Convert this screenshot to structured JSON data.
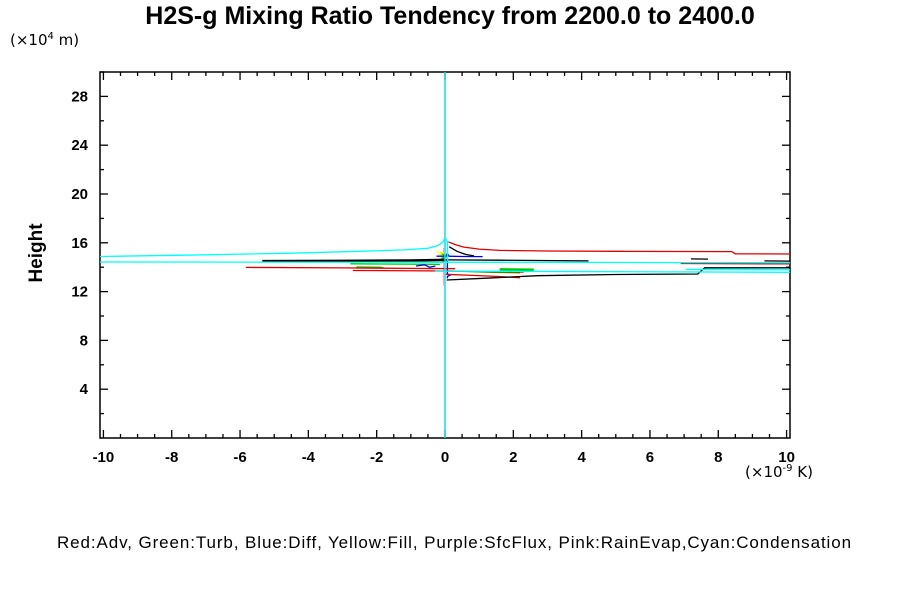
{
  "page": {
    "background": "#FFFFFF"
  },
  "chart_data": {
    "type": "line",
    "title": "H2S-g Mixing Ratio Tendency from 2200.0 to 2400.0",
    "x_axis": {
      "unit_pre": "(×10",
      "unit_sup": "-9",
      "unit_post": " K)",
      "lim": [
        -10.1,
        10.1
      ],
      "major_ticks": [
        -10,
        -8,
        -6,
        -4,
        -2,
        0,
        2,
        4,
        6,
        8,
        10
      ],
      "minor_step": 0.5
    },
    "y_axis": {
      "label": "Height",
      "unit_pre": "(×10",
      "unit_sup": "4",
      "unit_post": " m)",
      "lim": [
        0,
        30
      ],
      "major_ticks": [
        4,
        8,
        12,
        16,
        20,
        24,
        28
      ],
      "minor_step": 2
    },
    "legend_text": "Red:Adv, Green:Turb, Blue:Diff, Yellow:Fill, Purple:SfcFlux, Pink:RainEvap,Cyan:Condensation",
    "grid": false,
    "series": [
      {
        "key": "sfcflux",
        "label": "SfcFlux",
        "color_name": "Purple",
        "color": "#9400D3",
        "segments": [
          {
            "pts": [
              [
                0,
                0
              ],
              [
                0,
                30
              ]
            ]
          }
        ]
      },
      {
        "key": "rainevap",
        "label": "RainEvap",
        "color_name": "Pink",
        "color": "#FF9EC0",
        "segments": [
          {
            "pts": [
              [
                -0.04,
                12.5
              ],
              [
                -0.04,
                15.6
              ]
            ]
          }
        ]
      },
      {
        "key": "fill",
        "label": "Fill",
        "color_name": "Yellow",
        "color": "#FFFF00",
        "segments": [
          {
            "pts": [
              [
                -0.25,
                15.28
              ],
              [
                -0.05,
                15.18
              ],
              [
                -0.18,
                15.05
              ],
              [
                0.05,
                14.97
              ],
              [
                -0.06,
                14.88
              ]
            ]
          }
        ]
      },
      {
        "key": "turb",
        "label": "Turb",
        "color_name": "Green",
        "color": "#00C800",
        "segments": [
          {
            "pts": [
              [
                -2.77,
                14.28
              ],
              [
                -0.15,
                14.24
              ]
            ]
          },
          {
            "pts": [
              [
                -2.6,
                14.02
              ],
              [
                -1.8,
                13.99
              ]
            ]
          },
          {
            "pts": [
              [
                1.6,
                13.82
              ],
              [
                2.6,
                13.79
              ]
            ],
            "w": 2.5
          },
          {
            "pts": [
              [
                0.1,
                13.7
              ],
              [
                0.7,
                13.64
              ],
              [
                1.4,
                13.58
              ],
              [
                2.2,
                13.54
              ]
            ]
          },
          {
            "pts": [
              [
                -0.1,
                15.1
              ],
              [
                0.06,
                14.92
              ],
              [
                -0.08,
                14.75
              ],
              [
                0.06,
                14.6
              ],
              [
                -0.06,
                14.45
              ],
              [
                0.08,
                14.35
              ]
            ]
          }
        ]
      },
      {
        "key": "diff",
        "label": "Diff",
        "color_name": "Blue",
        "color": "#0000F0",
        "segments": [
          {
            "pts": [
              [
                -0.25,
                14.9
              ],
              [
                0.02,
                14.9
              ],
              [
                0.07,
                15.12
              ],
              [
                0.12,
                14.9
              ],
              [
                0.5,
                14.88
              ],
              [
                1.1,
                14.87
              ]
            ]
          },
          {
            "pts": [
              [
                -0.85,
                14.1
              ],
              [
                -0.6,
                14.2
              ],
              [
                -0.45,
                14.0
              ],
              [
                -0.28,
                14.1
              ]
            ]
          },
          {
            "pts": [
              [
                0.07,
                14.85
              ],
              [
                0.07,
                13.45
              ],
              [
                0.15,
                13.35
              ],
              [
                0.07,
                13.25
              ],
              [
                0.07,
                13.08
              ]
            ]
          }
        ]
      },
      {
        "key": "adv",
        "label": "Adv",
        "color_name": "Red",
        "color": "#E00000",
        "segments": [
          {
            "pts": [
              [
                0.1,
                16.08
              ],
              [
                0.3,
                15.85
              ],
              [
                0.55,
                15.65
              ],
              [
                1.0,
                15.48
              ],
              [
                1.6,
                15.38
              ],
              [
                3,
                15.33
              ],
              [
                5,
                15.3
              ],
              [
                8.4,
                15.28
              ],
              [
                8.5,
                15.1
              ],
              [
                10.1,
                15.08
              ]
            ]
          },
          {
            "pts": [
              [
                6.9,
                14.3
              ],
              [
                10.1,
                14.27
              ]
            ]
          },
          {
            "pts": [
              [
                -5.83,
                13.98
              ],
              [
                -3,
                13.94
              ],
              [
                -1,
                13.9
              ],
              [
                0.3,
                13.88
              ]
            ]
          },
          {
            "pts": [
              [
                -2.7,
                13.73
              ],
              [
                -0.5,
                13.7
              ],
              [
                0.6,
                13.67
              ],
              [
                2.3,
                13.6
              ]
            ]
          },
          {
            "pts": [
              [
                0.02,
                13.42
              ],
              [
                0.8,
                13.33
              ],
              [
                1.5,
                13.25
              ],
              [
                2.2,
                13.14
              ]
            ]
          }
        ]
      },
      {
        "key": "black",
        "label": "",
        "color_name": "Black",
        "color": "#000000",
        "segments": [
          {
            "pts": [
              [
                -5.35,
                14.5
              ],
              [
                -3,
                14.52
              ],
              [
                -1,
                14.55
              ],
              [
                0,
                14.6
              ]
            ],
            "w": 2.5
          },
          {
            "pts": [
              [
                0,
                14.6
              ],
              [
                1.6,
                14.57
              ],
              [
                4.2,
                14.52
              ]
            ]
          },
          {
            "pts": [
              [
                0.12,
                15.68
              ],
              [
                0.35,
                15.3
              ],
              [
                0.6,
                15.05
              ],
              [
                0.85,
                14.93
              ]
            ]
          },
          {
            "pts": [
              [
                0.05,
                12.95
              ],
              [
                1.2,
                13.1
              ],
              [
                2.7,
                13.3
              ],
              [
                5,
                13.4
              ],
              [
                7.4,
                13.44
              ],
              [
                7.6,
                13.95
              ],
              [
                10.1,
                13.95
              ]
            ]
          },
          {
            "pts": [
              [
                7.2,
                14.68
              ],
              [
                7.7,
                14.66
              ]
            ]
          },
          {
            "pts": [
              [
                9.35,
                14.52
              ],
              [
                10.1,
                14.5
              ]
            ]
          }
        ]
      },
      {
        "key": "condensation",
        "label": "Condensation",
        "color_name": "Cyan",
        "color": "#00FFFF",
        "segments": [
          {
            "pts": [
              [
                -10.1,
                14.43
              ],
              [
                0,
                14.4
              ],
              [
                3,
                14.4
              ],
              [
                6.9,
                14.38
              ],
              [
                10.1,
                14.37
              ]
            ]
          },
          {
            "pts": [
              [
                -0.3,
                13.68
              ],
              [
                2,
                13.66
              ],
              [
                5,
                13.63
              ],
              [
                10.1,
                13.58
              ]
            ]
          },
          {
            "pts": [
              [
                7.05,
                13.82
              ],
              [
                10.1,
                13.79
              ]
            ]
          },
          {
            "pts": [
              [
                -10.1,
                14.88
              ],
              [
                -7,
                15.02
              ],
              [
                -4.5,
                15.15
              ],
              [
                -2.5,
                15.3
              ],
              [
                -1.2,
                15.42
              ],
              [
                -0.5,
                15.55
              ],
              [
                -0.2,
                15.78
              ],
              [
                -0.05,
                16.1
              ],
              [
                0,
                16.44
              ],
              [
                0.07,
                16.1
              ],
              [
                0.08,
                14.5
              ]
            ]
          },
          {
            "pts": [
              [
                0,
                0
              ],
              [
                0,
                30
              ]
            ]
          }
        ]
      }
    ]
  }
}
